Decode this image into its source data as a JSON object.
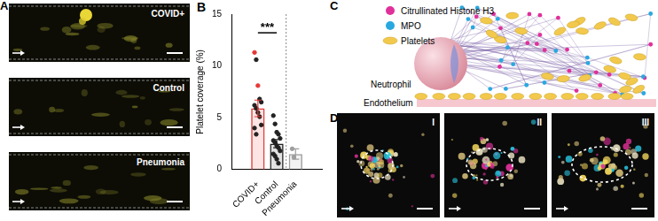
{
  "chart_data": {
    "type": "bar",
    "title": "B",
    "y_label": "Platelet coverage (%)",
    "categories": [
      "COVID+",
      "Control",
      "Pneumonia"
    ],
    "values": [
      5.9,
      2.5,
      1.5
    ],
    "errors": [
      0.8,
      0.4,
      0.5
    ],
    "colors": [
      "#e53935",
      "#222222",
      "#9e9e9e"
    ],
    "points": [
      {
        "values": [
          11.3,
          10.6,
          8.1,
          6.8,
          6.5,
          6.2,
          5.9,
          5.5,
          5.1,
          4.3,
          4.0,
          3.4
        ],
        "colors": [
          "#e53935",
          "#222222",
          "#e53935",
          "#222222",
          "#222222",
          "#222222",
          "#222222",
          "#222222",
          "#222222",
          "#222222",
          "#222222",
          "#222222"
        ]
      },
      {
        "values": [
          5.2,
          4.4,
          3.6,
          3.4,
          3.0,
          2.8,
          2.6,
          2.3,
          2.1,
          1.8,
          1.5,
          1.3,
          1.0,
          0.6
        ],
        "colors": [
          "#222222",
          "#222222",
          "#222222",
          "#222222",
          "#222222",
          "#222222",
          "#222222",
          "#222222",
          "#222222",
          "#222222",
          "#222222",
          "#222222",
          "#222222",
          "#222222"
        ]
      },
      {
        "values": [
          2.0,
          1.2
        ],
        "colors": [
          "#9e9e9e",
          "#9e9e9e"
        ]
      }
    ],
    "ylim": [
      0,
      15
    ],
    "yticks": [
      0,
      5,
      10,
      15
    ],
    "grid": false,
    "annotations": [
      {
        "text": "***",
        "from": "COVID+",
        "to": "Control",
        "y": 13.2
      }
    ]
  },
  "panels": {
    "A": {
      "letter": "A",
      "images": [
        {
          "label": "COVID+"
        },
        {
          "label": "Control"
        },
        {
          "label": "Pneumonia"
        }
      ]
    },
    "C": {
      "letter": "C",
      "legend": [
        {
          "label": "Citrullinated Histone H3",
          "color": "#e0309a"
        },
        {
          "label": "MPO",
          "color": "#29a8e0"
        },
        {
          "label": "Platelets",
          "color": "#f2c94c"
        }
      ],
      "labels": [
        "Neutrophil",
        "Endothelium"
      ]
    },
    "D": {
      "letter": "D",
      "images": [
        {
          "label": "I"
        },
        {
          "label": "II"
        },
        {
          "label": "III"
        }
      ]
    }
  }
}
